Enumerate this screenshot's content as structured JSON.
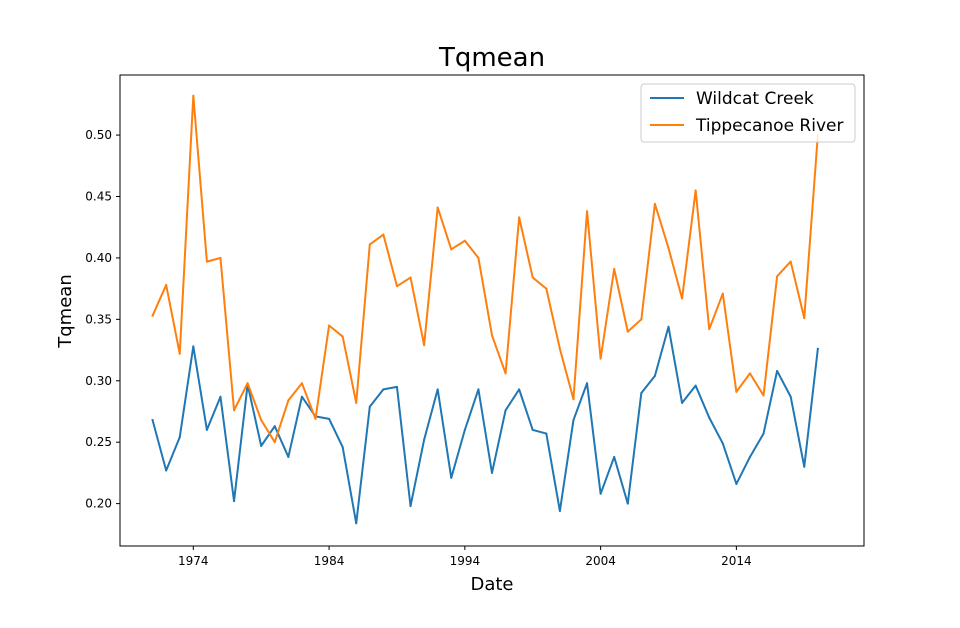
{
  "chart_data": {
    "type": "line",
    "title": "Tqmean",
    "xlabel": "Date",
    "ylabel": "Tqmean",
    "xlim": [
      1968.6,
      2023.4
    ],
    "ylim": [
      0.1655,
      0.5489
    ],
    "x_ticks": [
      1974,
      1984,
      1994,
      2004,
      2014
    ],
    "y_ticks": [
      0.2,
      0.25,
      0.3,
      0.35,
      0.4,
      0.45,
      0.5
    ],
    "y_tick_labels": [
      "0.20",
      "0.25",
      "0.30",
      "0.35",
      "0.40",
      "0.45",
      "0.50"
    ],
    "grid": false,
    "legend_position": "top-right",
    "x": [
      1971,
      1972,
      1973,
      1974,
      1975,
      1976,
      1977,
      1978,
      1979,
      1980,
      1981,
      1982,
      1983,
      1984,
      1985,
      1986,
      1987,
      1988,
      1989,
      1990,
      1991,
      1992,
      1993,
      1994,
      1995,
      1996,
      1997,
      1998,
      1999,
      2000,
      2001,
      2002,
      2003,
      2004,
      2005,
      2006,
      2007,
      2008,
      2009,
      2010,
      2011,
      2012,
      2013,
      2014,
      2015,
      2016,
      2017,
      2018,
      2019,
      2020
    ],
    "series": [
      {
        "name": "Wildcat Creek",
        "color": "#1f77b4",
        "values": [
          0.268,
          0.227,
          0.254,
          0.328,
          0.26,
          0.287,
          0.202,
          0.297,
          0.247,
          0.263,
          0.238,
          0.287,
          0.271,
          0.269,
          0.246,
          0.184,
          0.279,
          0.293,
          0.295,
          0.198,
          0.252,
          0.293,
          0.221,
          0.26,
          0.293,
          0.225,
          0.276,
          0.293,
          0.26,
          0.257,
          0.194,
          0.268,
          0.298,
          0.208,
          0.238,
          0.2,
          0.29,
          0.304,
          0.344,
          0.282,
          0.296,
          0.27,
          0.249,
          0.216,
          0.238,
          0.257,
          0.308,
          0.287,
          0.23,
          0.326
        ]
      },
      {
        "name": "Tippecanoe River",
        "color": "#ff7f0e",
        "values": [
          0.353,
          0.378,
          0.322,
          0.532,
          0.397,
          0.4,
          0.276,
          0.298,
          0.268,
          0.25,
          0.284,
          0.298,
          0.269,
          0.345,
          0.336,
          0.282,
          0.411,
          0.419,
          0.377,
          0.384,
          0.329,
          0.441,
          0.407,
          0.414,
          0.4,
          0.337,
          0.306,
          0.433,
          0.384,
          0.375,
          0.326,
          0.285,
          0.438,
          0.318,
          0.391,
          0.34,
          0.35,
          0.444,
          0.408,
          0.367,
          0.455,
          0.342,
          0.371,
          0.291,
          0.306,
          0.288,
          0.385,
          0.397,
          0.351,
          0.5
        ]
      }
    ]
  }
}
